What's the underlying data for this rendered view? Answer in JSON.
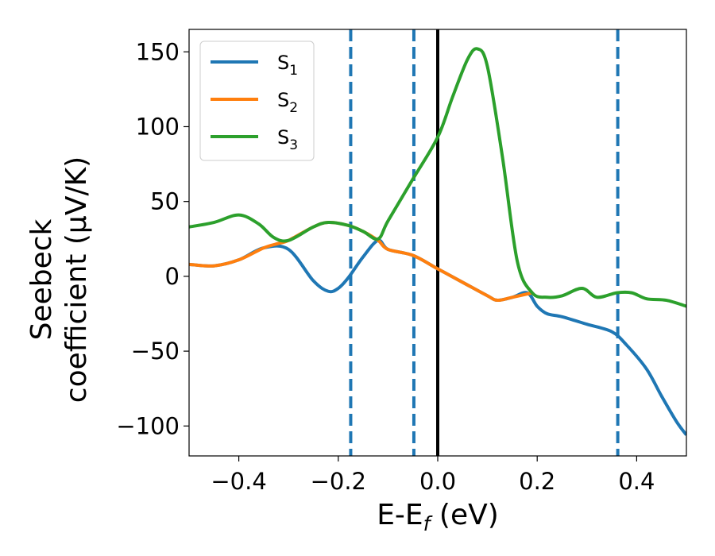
{
  "chart_data": {
    "type": "line",
    "xlabel": {
      "main": "E-E",
      "sub": "f",
      "unit": " (eV)"
    },
    "ylabel": {
      "line1": "Seebeck",
      "line2": "coefficient  (μV/K)"
    },
    "xlim": [
      -0.5,
      0.5
    ],
    "ylim": [
      -120,
      165
    ],
    "xticks": [
      -0.4,
      -0.2,
      0.0,
      0.2,
      0.4
    ],
    "xtick_labels": [
      "−0.4",
      "−0.2",
      "0.0",
      "0.2",
      "0.4"
    ],
    "yticks": [
      -100,
      -50,
      0,
      50,
      100,
      150
    ],
    "ytick_labels": [
      "−100",
      "−50",
      "0",
      "50",
      "100",
      "150"
    ],
    "legend": {
      "position": "upper-left"
    },
    "vlines": [
      {
        "x": -0.175,
        "style": "dashed",
        "color": "#1f77b4"
      },
      {
        "x": -0.048,
        "style": "dashed",
        "color": "#1f77b4"
      },
      {
        "x": 0.0,
        "style": "solid",
        "color": "#000000"
      },
      {
        "x": 0.362,
        "style": "dashed",
        "color": "#1f77b4"
      }
    ],
    "series": [
      {
        "name": "S",
        "sub": "1",
        "color": "#1f77b4",
        "x": [
          -0.5,
          -0.45,
          -0.4,
          -0.35,
          -0.3,
          -0.25,
          -0.22,
          -0.2,
          -0.18,
          -0.15,
          -0.12,
          -0.1,
          -0.05,
          0.0,
          0.05,
          0.1,
          0.12,
          0.15,
          0.18,
          0.2,
          0.22,
          0.25,
          0.3,
          0.35,
          0.38,
          0.42,
          0.45,
          0.48,
          0.5
        ],
        "y": [
          8,
          7,
          11,
          19,
          18,
          -3,
          -10,
          -8,
          -1,
          13,
          24,
          18,
          14,
          5,
          -4,
          -13,
          -16,
          -14,
          -11,
          -20,
          -25,
          -27,
          -32,
          -37,
          -46,
          -62,
          -80,
          -97,
          -106
        ]
      },
      {
        "name": "S",
        "sub": "2",
        "color": "#ff7f0e",
        "x": [
          -0.5,
          -0.45,
          -0.4,
          -0.35,
          -0.32,
          -0.3,
          -0.25,
          -0.22,
          -0.18,
          -0.15,
          -0.12,
          -0.1,
          -0.05,
          0.0,
          0.05,
          0.1,
          0.12,
          0.15,
          0.19
        ],
        "y": [
          8,
          7,
          11,
          19,
          22,
          24,
          33,
          36,
          34,
          30,
          24,
          18,
          14,
          5,
          -4,
          -13,
          -16,
          -14,
          -11
        ]
      },
      {
        "name": "S",
        "sub": "3",
        "color": "#2ca02c",
        "x": [
          -0.5,
          -0.45,
          -0.4,
          -0.36,
          -0.33,
          -0.3,
          -0.25,
          -0.22,
          -0.18,
          -0.15,
          -0.12,
          -0.1,
          -0.05,
          0.0,
          0.03,
          0.06,
          0.08,
          0.1,
          0.13,
          0.16,
          0.19,
          0.22,
          0.25,
          0.29,
          0.32,
          0.36,
          0.39,
          0.42,
          0.46,
          0.5
        ],
        "y": [
          33,
          36,
          41,
          35,
          26,
          24,
          33,
          36,
          34,
          30,
          25,
          37,
          65,
          93,
          120,
          145,
          152,
          140,
          80,
          10,
          -11,
          -14,
          -13,
          -8,
          -14,
          -11,
          -11,
          -15,
          -16,
          -20
        ]
      }
    ]
  }
}
